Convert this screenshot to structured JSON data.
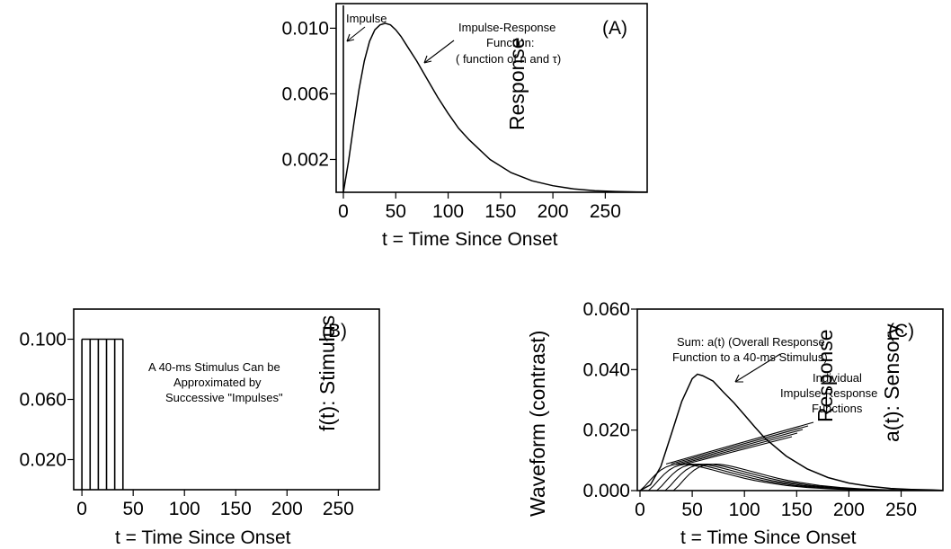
{
  "chart_data": [
    {
      "panel": "(A)",
      "type": "line",
      "xlabel": "t = Time Since Onset",
      "ylabel": "Response",
      "xlim": [
        0,
        290
      ],
      "ylim": [
        0,
        0.0115
      ],
      "xticks": [
        "0",
        "50",
        "100",
        "150",
        "200",
        "250"
      ],
      "yticks": [
        "0.002",
        "0.006",
        "0.010"
      ],
      "annotations": [
        "Impulse",
        "Impulse-Response",
        "Function:",
        "( function of n and τ)"
      ],
      "series": [
        {
          "x": [
            0,
            5,
            10,
            15,
            20,
            25,
            30,
            35,
            40,
            45,
            50,
            55,
            60,
            70,
            80,
            90,
            100,
            110,
            120,
            140,
            160,
            180,
            200,
            220,
            240,
            260,
            280,
            290
          ],
          "y": [
            0,
            0.0019,
            0.0042,
            0.0063,
            0.008,
            0.0092,
            0.0099,
            0.0102,
            0.0103,
            0.0102,
            0.0099,
            0.0095,
            0.009,
            0.008,
            0.0069,
            0.0058,
            0.0048,
            0.0039,
            0.0032,
            0.002,
            0.0012,
            0.0007,
            0.0004,
            0.0002,
            0.0001,
            5e-05,
            2e-05,
            1e-05
          ]
        }
      ]
    },
    {
      "panel": "(B)",
      "type": "bar",
      "xlabel": "t = Time Since Onset",
      "ylabel": "f(t): Stimulus",
      "xlim": [
        -8,
        290
      ],
      "ylim": [
        0,
        0.12
      ],
      "xticks": [
        "0",
        "50",
        "100",
        "150",
        "200",
        "250"
      ],
      "yticks": [
        "0.020",
        "0.060",
        "0.100"
      ],
      "annotations": [
        "A 40-ms Stimulus Can be",
        "Approximated by",
        "Successive \"Impulses\""
      ],
      "impulse_times": [
        0,
        8,
        16,
        24,
        32,
        40
      ],
      "stimulus_level": 0.1
    },
    {
      "panel": "(C)",
      "type": "line",
      "xlabel": "t = Time Since Onset",
      "ylabel": "a(t): Sensory Response Waveform (contrast)",
      "xlim": [
        0,
        290
      ],
      "ylim": [
        0,
        0.06
      ],
      "xticks": [
        "0",
        "50",
        "100",
        "150",
        "200",
        "250"
      ],
      "yticks": [
        "0.000",
        "0.020",
        "0.040",
        "0.060"
      ],
      "annotations": [
        "Sum: a(t) (Overall Response",
        "Function to a 40-ms Stimulus)",
        "Individual",
        "Impulse-Response",
        "Functions"
      ],
      "sum_series": {
        "x": [
          0,
          10,
          20,
          30,
          40,
          50,
          55,
          60,
          70,
          80,
          90,
          100,
          110,
          120,
          140,
          160,
          180,
          200,
          220,
          240,
          260,
          280,
          290
        ],
        "y": [
          0,
          0.0019,
          0.008,
          0.0187,
          0.0295,
          0.037,
          0.0385,
          0.038,
          0.0362,
          0.0325,
          0.029,
          0.025,
          0.021,
          0.0172,
          0.0114,
          0.0072,
          0.0043,
          0.0025,
          0.0014,
          0.0007,
          0.0004,
          0.0002,
          0.0001
        ]
      },
      "individual_offsets": [
        0,
        8,
        16,
        24,
        32
      ]
    }
  ]
}
